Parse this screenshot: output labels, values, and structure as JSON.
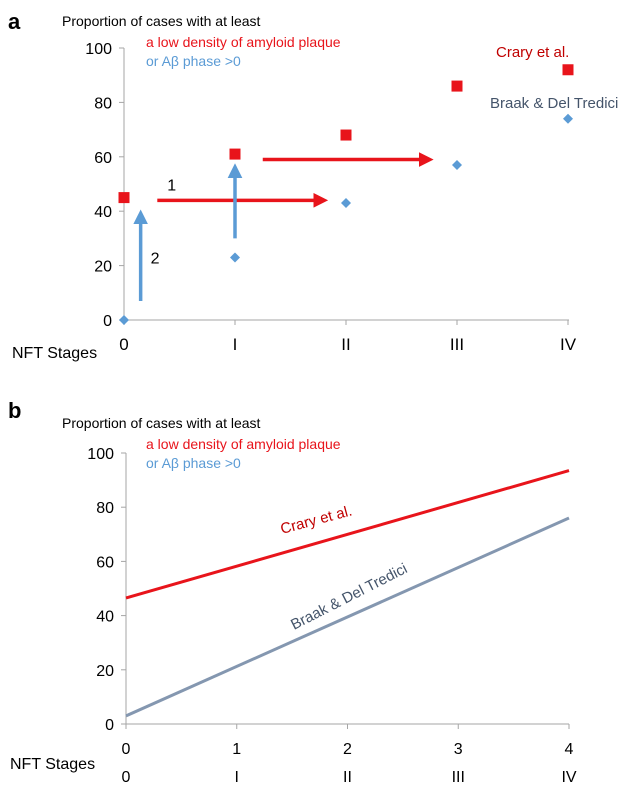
{
  "colors": {
    "red": "#e8141b",
    "darkred": "#c00000",
    "blue": "#5b9bd5",
    "slate": "#8497b0",
    "slate_text": "#44546a",
    "axis": "#a6a6a6",
    "text": "#000000"
  },
  "chart_data": [
    {
      "panel": "a",
      "type": "scatter",
      "ylabel_line1": "Proportion of cases with at least",
      "ylabel_line2": "a low density of amyloid plaque",
      "ylabel_line3": "or Aβ phase >0",
      "xlabel": "NFT Stages",
      "categories": [
        "0",
        "I",
        "II",
        "III",
        "IV"
      ],
      "ylim": [
        0,
        100
      ],
      "yticks": [
        "0",
        "20",
        "40",
        "60",
        "80",
        "100"
      ],
      "series": [
        {
          "name": "Crary et al.",
          "marker": "square",
          "color": "#e8141b",
          "label_color": "#c00000",
          "values": [
            45,
            61,
            68,
            86,
            92
          ]
        },
        {
          "name": "Braak & Del Tredici",
          "marker": "diamond",
          "color": "#5b9bd5",
          "label_color": "#44546a",
          "values": [
            0,
            23,
            43,
            57,
            74
          ]
        }
      ],
      "annotations": [
        {
          "label": "1",
          "color": "#e8141b",
          "type": "horizontal",
          "from": [
            0.3,
            44
          ],
          "to": [
            1.8,
            44
          ]
        },
        {
          "label": "",
          "color": "#e8141b",
          "type": "horizontal",
          "from": [
            1.25,
            59
          ],
          "to": [
            2.75,
            59
          ]
        },
        {
          "label": "2",
          "color": "#5b9bd5",
          "type": "vertical",
          "from": [
            0.15,
            7
          ],
          "to": [
            0.15,
            39
          ]
        },
        {
          "label": "",
          "color": "#5b9bd5",
          "type": "vertical",
          "from": [
            1.0,
            30
          ],
          "to": [
            1.0,
            56
          ]
        }
      ]
    },
    {
      "panel": "b",
      "type": "line",
      "ylabel_line1": "Proportion of cases with at least",
      "ylabel_line2": "a low density of amyloid plaque",
      "ylabel_line3": "or Aβ phase >0",
      "xlabel": "NFT Stages",
      "x": [
        0,
        4
      ],
      "xticks": [
        "0",
        "1",
        "2",
        "3",
        "4"
      ],
      "xticks_secondary": [
        "0",
        "I",
        "II",
        "III",
        "IV"
      ],
      "ylim": [
        0,
        100
      ],
      "yticks": [
        "0",
        "20",
        "40",
        "60",
        "80",
        "100"
      ],
      "series": [
        {
          "name": "Crary et al.",
          "color": "#e8141b",
          "label_color": "#c00000",
          "values": [
            46.5,
            93.5
          ]
        },
        {
          "name": "Braak & Del Tredici",
          "color": "#8497b0",
          "label_color": "#44546a",
          "values": [
            3,
            76
          ]
        }
      ]
    }
  ]
}
